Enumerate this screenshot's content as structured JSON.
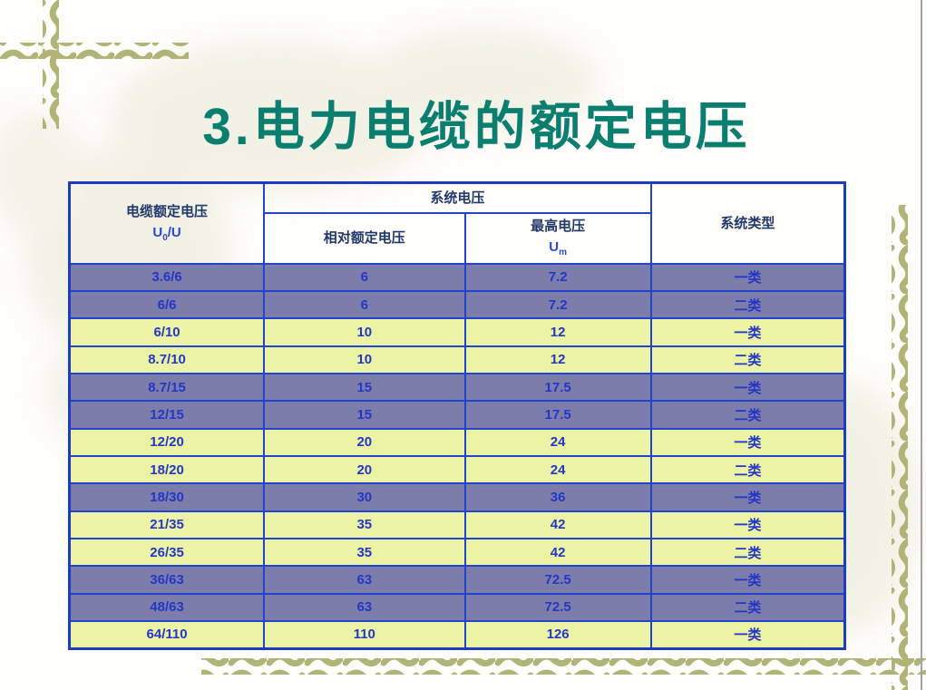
{
  "slide": {
    "title": "3.电力电缆的额定电压"
  },
  "table": {
    "header": {
      "cable_voltage_title": "电缆额定电压",
      "cable_symbol": {
        "main": "U",
        "sub": "0",
        "rest": "/U"
      },
      "system_voltage_group": "系统电压",
      "relative_rated_voltage": "相对额定电压",
      "max_voltage_title": "最高电压",
      "max_symbol": {
        "main": "U",
        "sub": "m"
      },
      "system_type": "系统类型"
    },
    "rows": [
      {
        "u0u": "3.6/6",
        "relative": "6",
        "max": "7.2",
        "type": "一类",
        "shade": "purple"
      },
      {
        "u0u": "6/6",
        "relative": "6",
        "max": "7.2",
        "type": "二类",
        "shade": "purple"
      },
      {
        "u0u": "6/10",
        "relative": "10",
        "max": "12",
        "type": "一类",
        "shade": "yellow"
      },
      {
        "u0u": "8.7/10",
        "relative": "10",
        "max": "12",
        "type": "二类",
        "shade": "yellow"
      },
      {
        "u0u": "8.7/15",
        "relative": "15",
        "max": "17.5",
        "type": "一类",
        "shade": "purple"
      },
      {
        "u0u": "12/15",
        "relative": "15",
        "max": "17.5",
        "type": "二类",
        "shade": "purple"
      },
      {
        "u0u": "12/20",
        "relative": "20",
        "max": "24",
        "type": "一类",
        "shade": "yellow"
      },
      {
        "u0u": "18/20",
        "relative": "20",
        "max": "24",
        "type": "二类",
        "shade": "yellow"
      },
      {
        "u0u": "18/30",
        "relative": "30",
        "max": "36",
        "type": "一类",
        "shade": "purple"
      },
      {
        "u0u": "21/35",
        "relative": "35",
        "max": "42",
        "type": "一类",
        "shade": "yellow"
      },
      {
        "u0u": "26/35",
        "relative": "35",
        "max": "42",
        "type": "二类",
        "shade": "yellow"
      },
      {
        "u0u": "36/63",
        "relative": "63",
        "max": "72.5",
        "type": "一类",
        "shade": "purple"
      },
      {
        "u0u": "48/63",
        "relative": "63",
        "max": "72.5",
        "type": "二类",
        "shade": "purple"
      },
      {
        "u0u": "64/110",
        "relative": "110",
        "max": "126",
        "type": "一类",
        "shade": "yellow"
      }
    ]
  },
  "colors": {
    "title_teal": "#0b7f6f",
    "row_purple": "#7d7dab",
    "row_yellow": "#edf3a4",
    "border_blue": "#2243cb",
    "outer_blue": "#1c3cc4",
    "header_navy": "#21386b",
    "data_blue": "#2337c6",
    "symbol_blue": "#2b46d8",
    "vine_olive": "#b1b377"
  }
}
